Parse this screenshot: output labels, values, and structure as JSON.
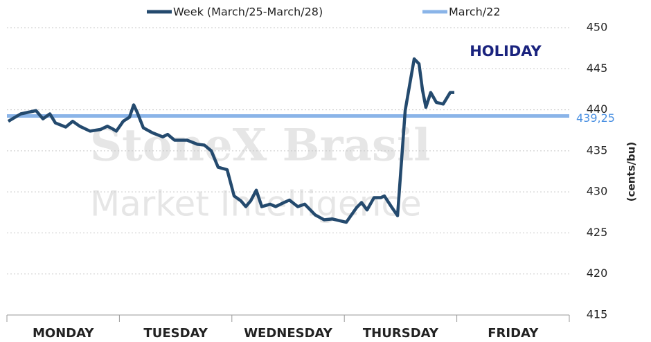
{
  "chart_data": {
    "type": "line",
    "annotation": "HOLIDAY",
    "y_axis_label": "(cents/bu)",
    "watermark": [
      "StoneX Brasil",
      "Market Intelligence"
    ],
    "xlim": [
      0,
      5
    ],
    "xticks": [
      {
        "value": 0.5,
        "label": "MONDAY"
      },
      {
        "value": 1.5,
        "label": "TUESDAY"
      },
      {
        "value": 2.5,
        "label": "WEDNESDAY"
      },
      {
        "value": 3.5,
        "label": "THURSDAY"
      },
      {
        "value": 4.5,
        "label": "FRIDAY"
      }
    ],
    "ylim": [
      415,
      450
    ],
    "yticks": [
      415,
      420,
      425,
      430,
      435,
      440,
      445,
      450
    ],
    "grid": true,
    "x": [
      0.012,
      0.123,
      0.259,
      0.32,
      0.382,
      0.431,
      0.523,
      0.585,
      0.647,
      0.739,
      0.831,
      0.893,
      0.936,
      0.973,
      1.034,
      1.09,
      1.127,
      1.158,
      1.213,
      1.293,
      1.385,
      1.429,
      1.49,
      1.601,
      1.693,
      1.755,
      1.817,
      1.878,
      1.958,
      2.02,
      2.081,
      2.124,
      2.167,
      2.217,
      2.266,
      2.34,
      2.389,
      2.463,
      2.512,
      2.586,
      2.648,
      2.74,
      2.82,
      2.894,
      3.017,
      3.11,
      3.153,
      3.202,
      3.264,
      3.325,
      3.356,
      3.418,
      3.473,
      3.541,
      3.584,
      3.621,
      3.664,
      3.695,
      3.725,
      3.768,
      3.818,
      3.879,
      3.941,
      3.978
    ],
    "series": [
      {
        "name": "Week (March/25-March/28)",
        "color": "#244a6e",
        "values": [
          438.6,
          439.5,
          439.9,
          438.9,
          439.5,
          438.4,
          437.9,
          438.6,
          438.0,
          437.4,
          437.6,
          438.0,
          437.7,
          437.4,
          438.6,
          439.1,
          440.6,
          439.7,
          437.8,
          437.2,
          436.7,
          437.0,
          436.3,
          436.3,
          435.8,
          435.7,
          435.0,
          433.0,
          432.7,
          429.5,
          428.9,
          428.2,
          428.9,
          430.2,
          428.2,
          428.5,
          428.2,
          428.7,
          429.0,
          428.2,
          428.5,
          427.2,
          426.6,
          426.7,
          426.3,
          428.1,
          428.7,
          427.8,
          429.3,
          429.3,
          429.5,
          428.2,
          427.1,
          439.9,
          443.3,
          446.2,
          445.6,
          442.4,
          440.3,
          442.1,
          440.9,
          440.7,
          442.1,
          442.1
        ]
      }
    ],
    "reference_line": {
      "name": "March/22",
      "color": "#8ab4e8",
      "value": 439.25,
      "value_label": "439,25"
    }
  }
}
